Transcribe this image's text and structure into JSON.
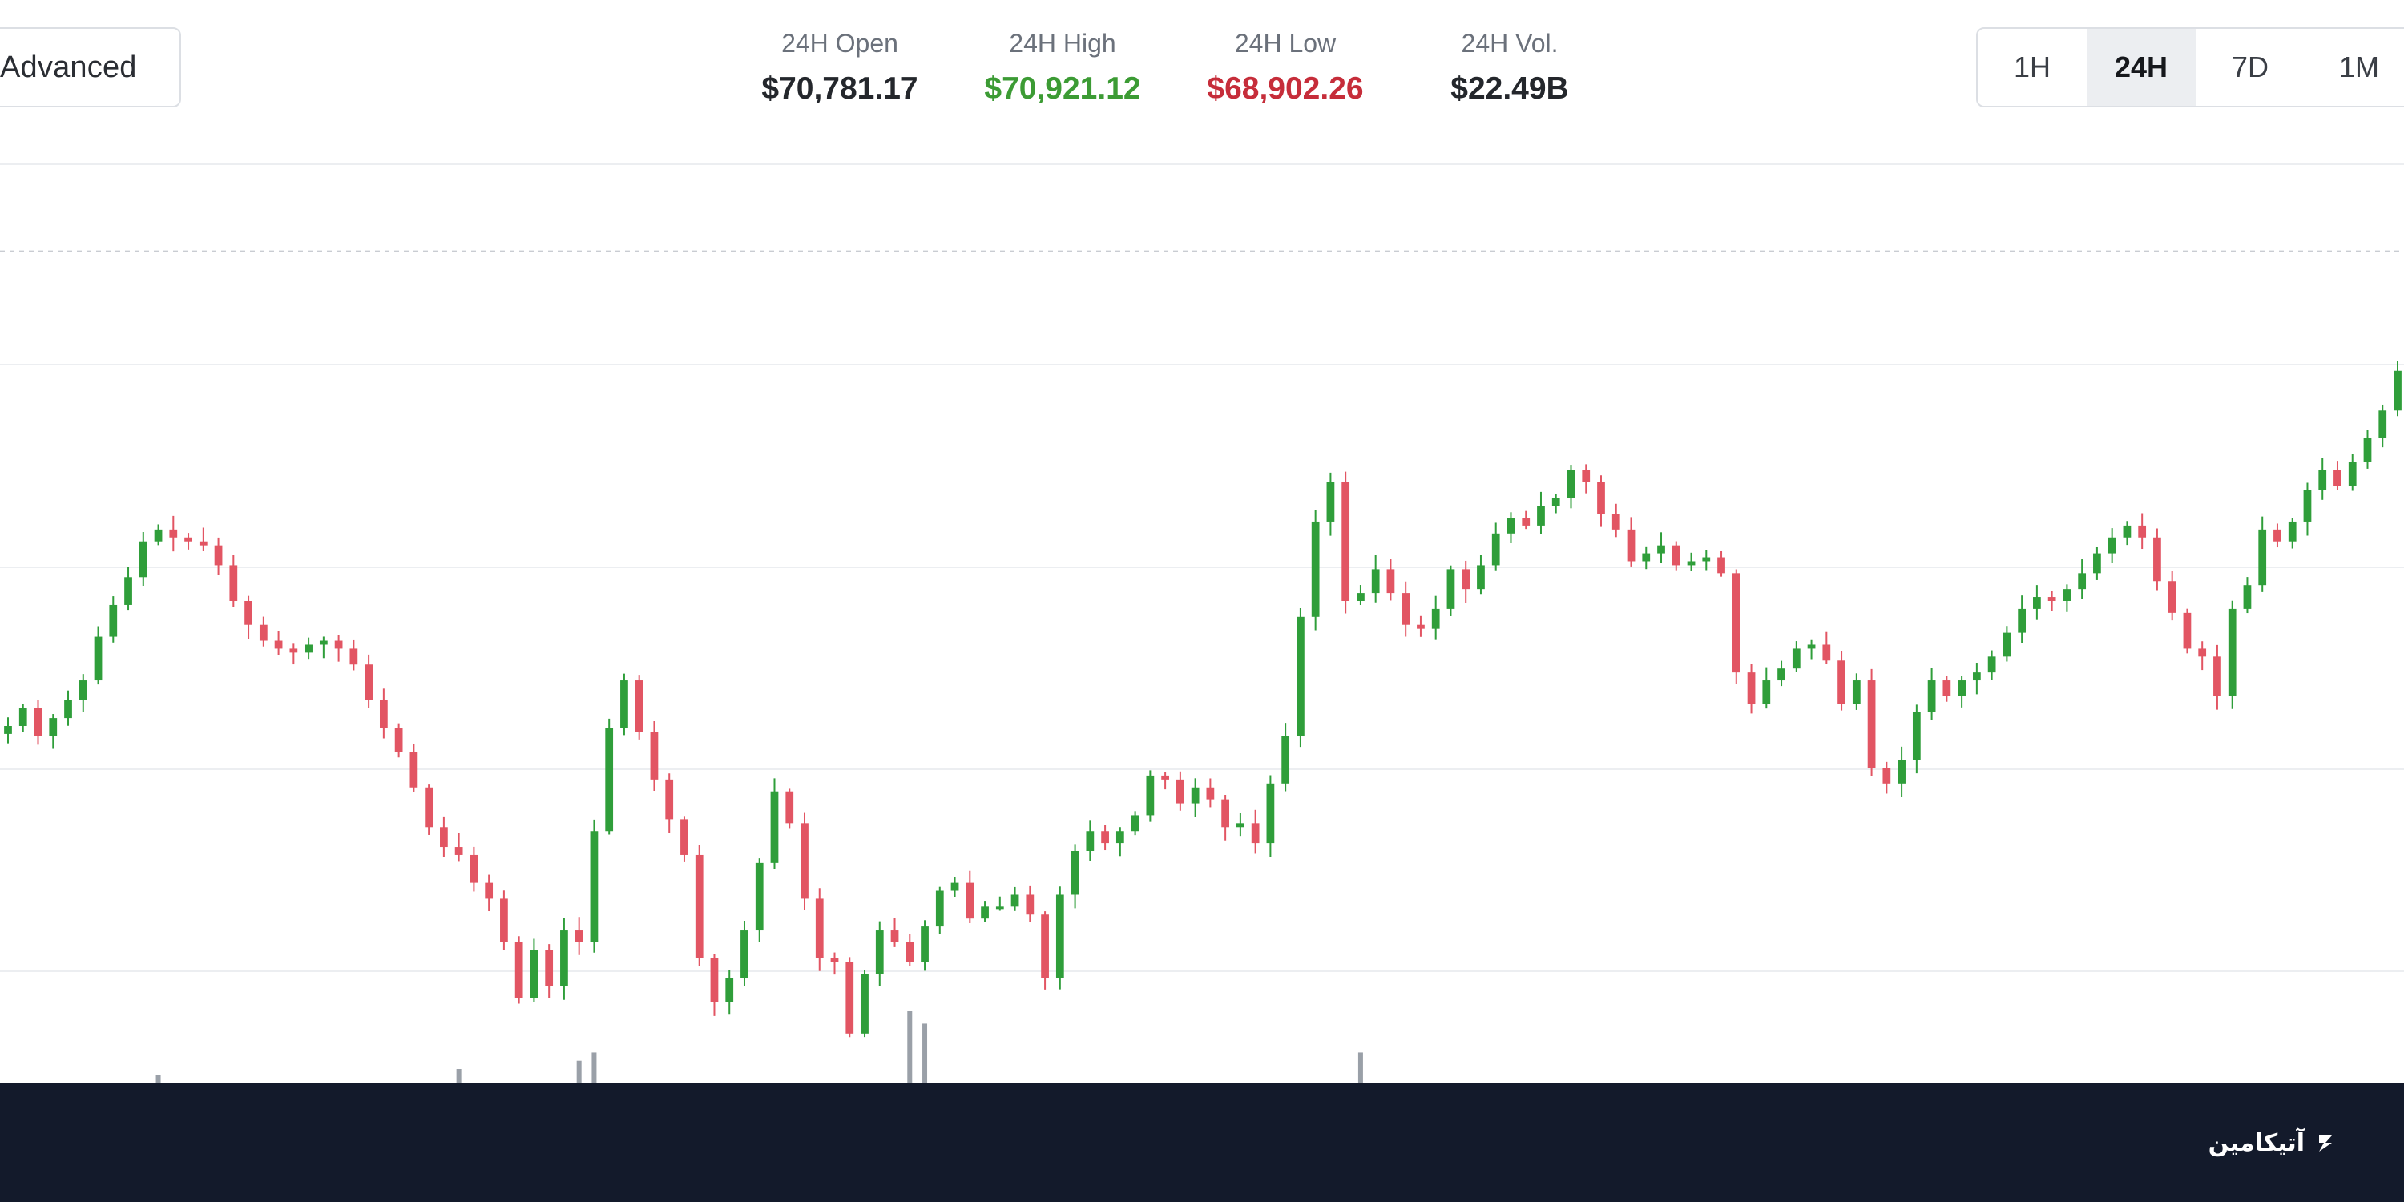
{
  "toolbar": {
    "advanced_label": "Advanced"
  },
  "stats": {
    "open": {
      "label": "24H Open",
      "value": "$70,781.17"
    },
    "high": {
      "label": "24H High",
      "value": "$70,921.12"
    },
    "low": {
      "label": "24H Low",
      "value": "$68,902.26"
    },
    "volume": {
      "label": "24H Vol.",
      "value": "$22.49B"
    }
  },
  "range_tabs": [
    {
      "label": "1H",
      "active": false
    },
    {
      "label": "24H",
      "active": true
    },
    {
      "label": "7D",
      "active": false
    },
    {
      "label": "1M",
      "active": false
    }
  ],
  "colors": {
    "up": "#2f9e3a",
    "down": "#e25563",
    "high_text": "#3c9b34",
    "low_text": "#c62d3a",
    "grid": "#eceef1",
    "footer": "#131a2b"
  },
  "brand": {
    "text": "آتیکامین",
    "icon": "brand-logo-icon"
  },
  "chart_data": {
    "type": "candlestick",
    "title": "",
    "xlabel": "",
    "ylabel": "",
    "grid": true,
    "reference_line": {
      "value": 70781.17,
      "style": "dashed"
    },
    "ylim": [
      68850,
      70950
    ],
    "price_path": [
      69585,
      69630,
      69560,
      69605,
      69650,
      69700,
      69810,
      69890,
      69960,
      70050,
      70080,
      70060,
      70050,
      70040,
      69990,
      69900,
      69840,
      69800,
      69780,
      69770,
      69790,
      69800,
      69780,
      69740,
      69650,
      69580,
      69520,
      69430,
      69330,
      69280,
      69260,
      69190,
      69150,
      69040,
      68900,
      69020,
      68930,
      69070,
      69040,
      69320,
      69580,
      69700,
      69570,
      69450,
      69350,
      69260,
      69000,
      68890,
      68950,
      69070,
      69240,
      69420,
      69340,
      69150,
      69000,
      68990,
      68810,
      68960,
      69070,
      69040,
      68990,
      69080,
      69170,
      69190,
      69100,
      69130,
      69130,
      69160,
      69110,
      68950,
      69160,
      69270,
      69320,
      69290,
      69320,
      69360,
      69460,
      69450,
      69390,
      69430,
      69400,
      69330,
      69340,
      69290,
      69440,
      69560,
      69860,
      70100,
      70200,
      69900,
      69920,
      69980,
      69920,
      69840,
      69830,
      69880,
      69980,
      69930,
      69990,
      70070,
      70110,
      70090,
      70140,
      70160,
      70230,
      70200,
      70120,
      70080,
      70000,
      70020,
      70040,
      69990,
      70000,
      70010,
      69970,
      69720,
      69640,
      69700,
      69730,
      69780,
      69790,
      69750,
      69640,
      69700,
      69480,
      69440,
      69500,
      69620,
      69700,
      69660,
      69700,
      69720,
      69760,
      69820,
      69880,
      69910,
      69900,
      69930,
      69970,
      70020,
      70060,
      70090,
      70060,
      69950,
      69870,
      69780,
      69760,
      69660,
      69880,
      69940,
      70080,
      70050,
      70100,
      70180,
      70230,
      70190,
      70250,
      70310,
      70380,
      70480
    ],
    "volume_spikes": [
      {
        "index": 10,
        "volume": 8
      },
      {
        "index": 30,
        "volume": 14
      },
      {
        "index": 38,
        "volume": 22
      },
      {
        "index": 39,
        "volume": 30
      },
      {
        "index": 60,
        "volume": 70
      },
      {
        "index": 61,
        "volume": 58
      },
      {
        "index": 90,
        "volume": 30
      }
    ]
  }
}
